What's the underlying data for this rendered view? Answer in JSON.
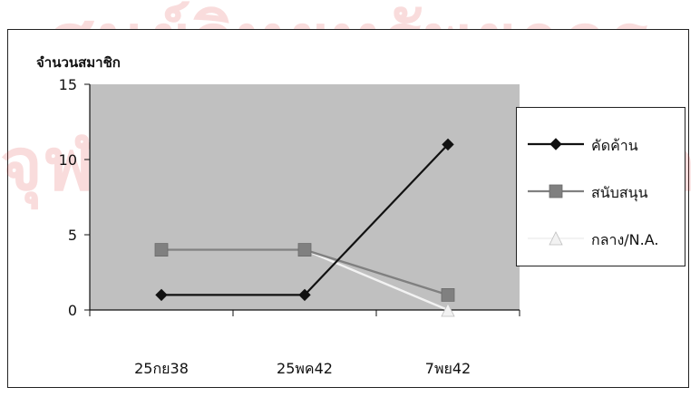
{
  "watermark": {
    "line1": "ศูนย์วิทยทรัพยากร",
    "line2": "จุฬาลงกรณ์มหาวิทยาลัย"
  },
  "chart_data": {
    "type": "line",
    "title": "",
    "xlabel": "",
    "ylabel": "จำนวนสมาชิก",
    "categories": [
      "25กย38",
      "25พค42",
      "7พย42"
    ],
    "ylim": [
      0,
      15
    ],
    "yticks": [
      0,
      5,
      10,
      15
    ],
    "grid": false,
    "legend_position": "right",
    "plot_background": "#c0c0c0",
    "series": [
      {
        "name": "คัดค้าน",
        "values": [
          1,
          1,
          11
        ],
        "color": "#111111",
        "marker": "diamond"
      },
      {
        "name": "สนับสนุน",
        "values": [
          4,
          4,
          1
        ],
        "color": "#808080",
        "marker": "square"
      },
      {
        "name": "กลาง/N.A.",
        "values": [
          4,
          4,
          0
        ],
        "color": "#f2f2f2",
        "marker": "triangle"
      }
    ]
  }
}
